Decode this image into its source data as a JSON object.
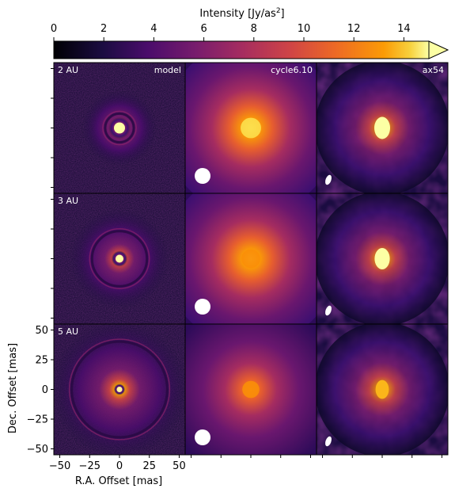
{
  "chart_data": {
    "type": "heatmap",
    "colorbar": {
      "label_main": "Intensity [Jy/as",
      "label_sup": "2",
      "label_close": "]",
      "ticks": [
        0,
        2,
        4,
        6,
        8,
        10,
        12,
        14
      ],
      "range": [
        0,
        15
      ],
      "extend": "max",
      "colormap": "inferno",
      "placement": "top"
    },
    "column_labels": [
      "model",
      "cycle6.10",
      "ax54"
    ],
    "row_labels": [
      "2 AU",
      "3 AU",
      "5 AU"
    ],
    "xlabel": "R.A. Offset [mas]",
    "ylabel": "Dec. Offset [mas]",
    "xticks": [
      -50,
      -25,
      0,
      25,
      50
    ],
    "yticks": [
      -50,
      -25,
      0,
      25,
      50
    ],
    "xlim": [
      -55,
      55
    ],
    "ylim": [
      -55,
      55
    ],
    "panels": [
      {
        "row": "2 AU",
        "column": "model",
        "peak": 15,
        "ring_radius_mas": 12
      },
      {
        "row": "2 AU",
        "column": "cycle6.10",
        "peak": 13,
        "ring_radius_mas": null
      },
      {
        "row": "2 AU",
        "column": "ax54",
        "peak": 15,
        "ring_radius_mas": null
      },
      {
        "row": "3 AU",
        "column": "model",
        "peak": 15,
        "ring_radius_mas": 23
      },
      {
        "row": "3 AU",
        "column": "cycle6.10",
        "peak": 11,
        "ring_radius_mas": null
      },
      {
        "row": "3 AU",
        "column": "ax54",
        "peak": 14,
        "ring_radius_mas": null
      },
      {
        "row": "5 AU",
        "column": "model",
        "peak": 15,
        "ring_radius_mas": 40
      },
      {
        "row": "5 AU",
        "column": "cycle6.10",
        "peak": 9,
        "ring_radius_mas": null
      },
      {
        "row": "5 AU",
        "column": "ax54",
        "peak": 11,
        "ring_radius_mas": null
      }
    ],
    "grid": false
  },
  "colors": {
    "background": "#000004",
    "beam": "#ffffff",
    "panel_text": "#ffffff"
  }
}
